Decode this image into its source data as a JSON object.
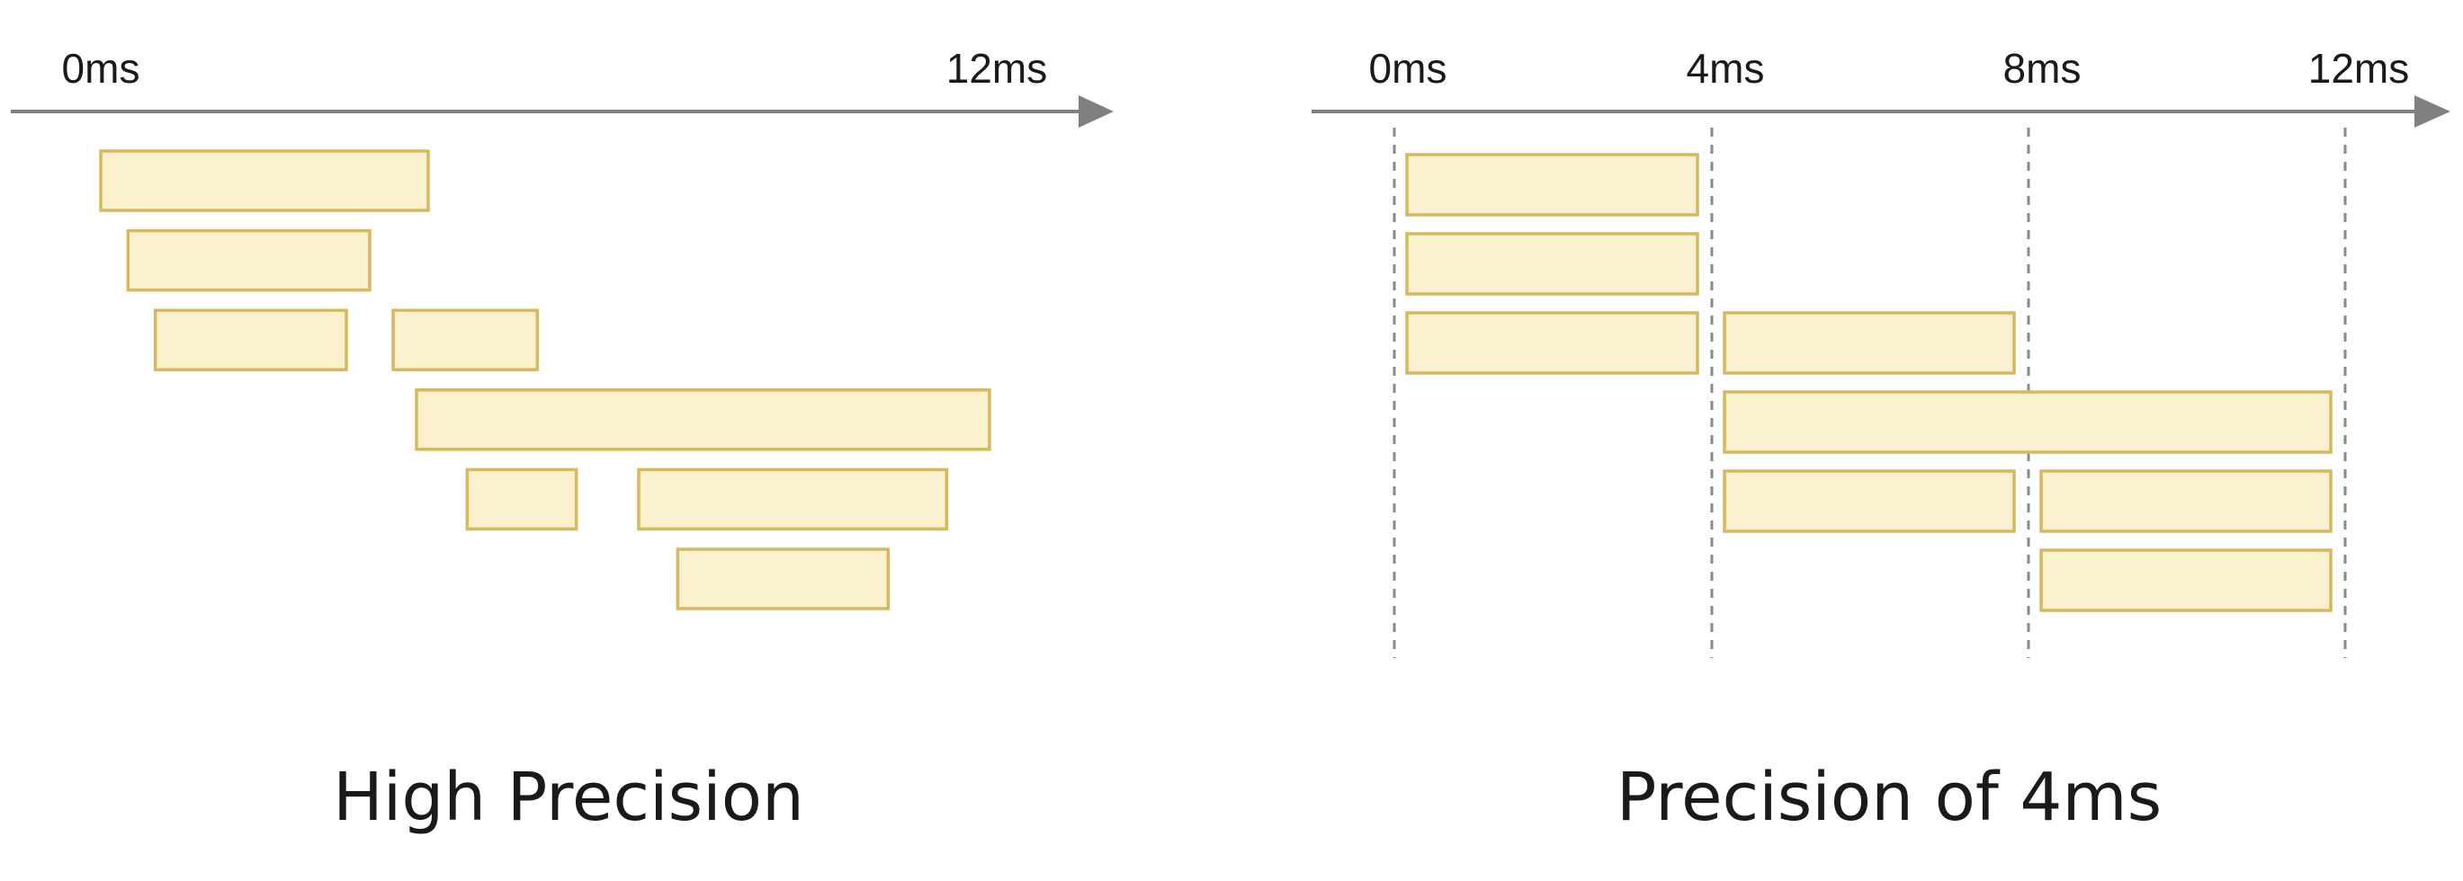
{
  "colors": {
    "bar_fill": "#fcf1cf",
    "bar_stroke": "#d7b95b",
    "axis": "#808080",
    "gridline": "#8a8a8a",
    "text": "#1a1a1a"
  },
  "panels": [
    {
      "id": "high-precision",
      "caption": "High Precision",
      "axis": {
        "start_label": "0ms",
        "end_label": "12ms",
        "range_ms": [
          0,
          12
        ]
      },
      "ticks": [
        {
          "value": 0,
          "label": "0ms"
        },
        {
          "value": 12,
          "label": "12ms"
        }
      ],
      "gridlines": false,
      "bars": [
        {
          "row": 0,
          "start": 0.0,
          "end": 4.2
        },
        {
          "row": 1,
          "start": 0.35,
          "end": 3.45
        },
        {
          "row": 2,
          "start": 0.7,
          "end": 3.15
        },
        {
          "row": 2,
          "start": 3.75,
          "end": 5.6
        },
        {
          "row": 3,
          "start": 4.05,
          "end": 11.4
        },
        {
          "row": 4,
          "start": 4.7,
          "end": 6.1
        },
        {
          "row": 4,
          "start": 6.9,
          "end": 10.85
        },
        {
          "row": 5,
          "start": 7.4,
          "end": 10.1
        }
      ]
    },
    {
      "id": "precision-4ms",
      "caption": "Precision of 4ms",
      "axis": {
        "start_label": "0ms",
        "end_label": "12ms",
        "range_ms": [
          0,
          12
        ]
      },
      "ticks": [
        {
          "value": 0,
          "label": "0ms"
        },
        {
          "value": 4,
          "label": "4ms"
        },
        {
          "value": 8,
          "label": "8ms"
        },
        {
          "value": 12,
          "label": "12ms"
        }
      ],
      "gridlines": true,
      "bars": [
        {
          "row": 0,
          "start": 0,
          "end": 4
        },
        {
          "row": 1,
          "start": 0,
          "end": 4
        },
        {
          "row": 2,
          "start": 0,
          "end": 4
        },
        {
          "row": 2,
          "start": 4,
          "end": 8
        },
        {
          "row": 3,
          "start": 4,
          "end": 12
        },
        {
          "row": 4,
          "start": 4,
          "end": 8
        },
        {
          "row": 4,
          "start": 8,
          "end": 12
        },
        {
          "row": 5,
          "start": 8,
          "end": 12
        }
      ]
    }
  ]
}
